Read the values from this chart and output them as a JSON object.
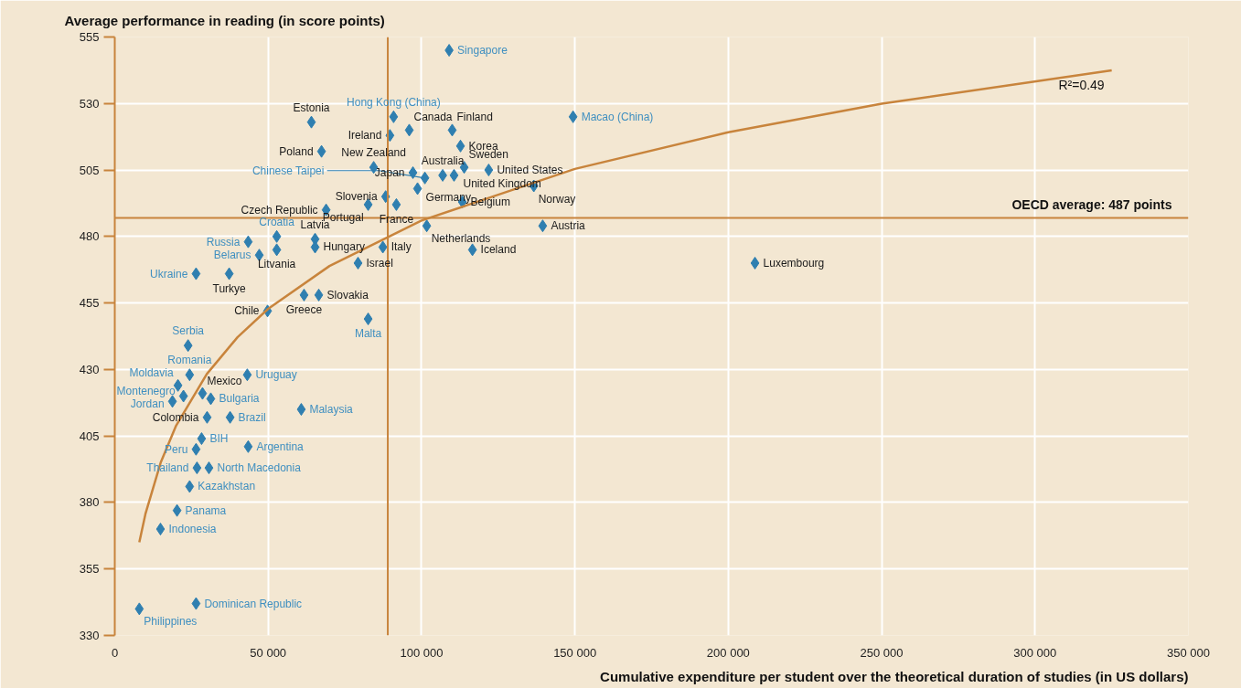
{
  "chart_data": {
    "type": "scatter",
    "xlabel": "Cumulative expenditure per student over the theoretical duration of studies (in US dollars)",
    "ylabel": "Average performance in reading (in score points)",
    "marker": "diamond",
    "grid": true,
    "xlim": [
      0,
      350000
    ],
    "ylim": [
      330,
      555
    ],
    "xticks": [
      0,
      {
        "value": 50000,
        "label": "50 000"
      },
      {
        "value": 100000,
        "label": "100 000"
      },
      {
        "value": 150000,
        "label": "150 000"
      },
      {
        "value": 200000,
        "label": "200 000"
      },
      {
        "value": 250000,
        "label": "250 000"
      },
      {
        "value": 300000,
        "label": "300 000"
      },
      {
        "value": 350000,
        "label": "350 000"
      }
    ],
    "yticks": [
      330,
      355,
      380,
      405,
      430,
      455,
      480,
      505,
      530,
      555
    ],
    "ref_lines": [
      {
        "axis": "y",
        "value": 487,
        "label": "OECD average: 487 points",
        "color": "#c8843c"
      },
      {
        "axis": "x",
        "value": 89000,
        "label": null,
        "color": "#c8843c"
      }
    ],
    "annotations": [
      "R²=0.49"
    ],
    "series": [
      {
        "color": "#2f7fb0",
        "x": [
          64100,
          96000,
          89700,
          110000,
          112700,
          67400,
          84400,
          97200,
          106900,
          110600,
          113900,
          121900,
          98700,
          88300,
          91800,
          82600,
          68900,
          113300,
          136600,
          101700,
          139500,
          116600,
          65300,
          65300,
          52800,
          87400,
          79300,
          37300,
          66500,
          61700,
          49800,
          208700,
          28600,
          30100
        ],
        "values": [
          523,
          520,
          518,
          520,
          514,
          512,
          506,
          504,
          503,
          503,
          506,
          505,
          498,
          495,
          492,
          492,
          490,
          493,
          499,
          484,
          484,
          475,
          479,
          476,
          475,
          476,
          470,
          466,
          458,
          458,
          452,
          470,
          421,
          412
        ],
        "value_labels": [
          "Estonia",
          "Canada",
          "Ireland",
          "Finland",
          "Korea",
          "Poland",
          "New Zealand",
          "Japan",
          "Australia",
          "United Kingdom",
          "Sweden",
          "United States",
          "Germany",
          "Slovenia",
          "France",
          "Portugal",
          "Czech Republic",
          "Belgium",
          "Norway",
          "Netherlands",
          "Austria",
          "Iceland",
          "Latvia",
          "Hungary",
          "Litvania",
          "Italy",
          "Israel",
          "Turkye",
          "Slovakia",
          "Greece",
          "Chile",
          "Luxembourg",
          "Mexico",
          "Colombia"
        ]
      },
      {
        "color": "#2f7fb0",
        "x": [
          109000,
          149400,
          90900,
          101100,
          52800,
          43500,
          47100,
          26500,
          82600,
          23900,
          24400,
          20600,
          22400,
          18800,
          43200,
          31300,
          37600,
          60800,
          28300,
          26500,
          43500,
          26800,
          30700,
          24400,
          20300,
          14900,
          26500,
          8000
        ],
        "values": [
          550,
          525,
          525,
          502,
          480,
          478,
          473,
          466,
          449,
          439,
          428,
          424,
          420,
          418,
          428,
          419,
          412,
          415,
          404,
          400,
          401,
          393,
          393,
          386,
          377,
          370,
          342,
          340
        ],
        "value_labels": [
          "Singapore",
          "Macao (China)",
          "Hong Kong (China)",
          "Chinese Taipei",
          "Croatia",
          "Russia",
          "Belarus",
          "Ukraine",
          "Malta",
          "Serbia",
          "Romania",
          "Moldavia",
          "Montenegro",
          "Jordan",
          "Uruguay",
          "Bulgaria",
          "Brazil",
          "Malaysia",
          "BIH",
          "Peru",
          "Argentina",
          "Thailand",
          "North Macedonia",
          "Kazakhstan",
          "Panama",
          "Indonesia",
          "Dominican Republic",
          "Philippines"
        ]
      },
      {
        "type": "line",
        "marker": "none",
        "color": "#c8843c",
        "x": [
          8000,
          10000,
          15000,
          20000,
          30000,
          40000,
          50000,
          70000,
          100000,
          150000,
          200000,
          250000,
          325000
        ],
        "values": [
          365,
          375.7,
          395.1,
          408.9,
          428.3,
          442.1,
          452.8,
          468.9,
          486,
          505.4,
          519.2,
          529.9,
          542.5
        ]
      }
    ]
  }
}
